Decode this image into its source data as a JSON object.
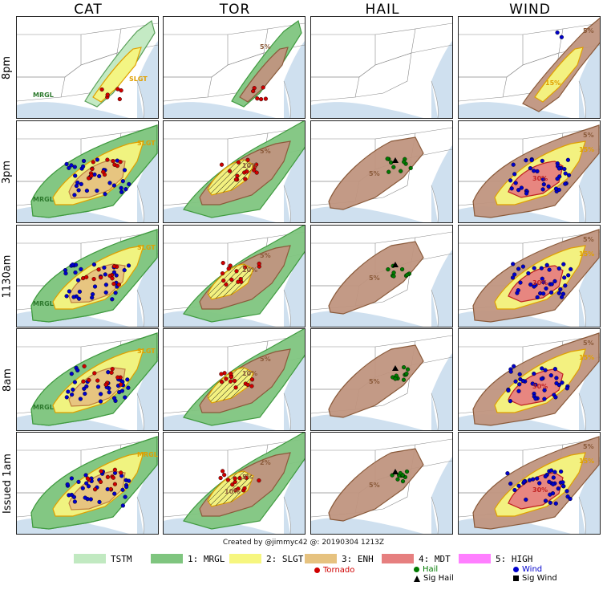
{
  "columns": [
    "CAT",
    "TOR",
    "HAIL",
    "WIND"
  ],
  "rows": [
    "8pm",
    "3pm",
    "1130am",
    "8am",
    "Issued 1am"
  ],
  "panel_labels": {
    "cat": {
      "r0": [
        "SLGT",
        "MRGL"
      ],
      "r1": [
        "SLGT",
        "MRGL"
      ],
      "r2": [
        "SLGT",
        "MRGL"
      ],
      "r3": [
        "SLGT",
        "MRGL"
      ],
      "r4": [
        "MRGL"
      ]
    },
    "tor": {
      "r0": [
        "5%"
      ],
      "r1": [
        "5%",
        "10%"
      ],
      "r2": [
        "5%",
        "10%"
      ],
      "r3": [
        "5%",
        "10%"
      ],
      "r4": [
        "2%",
        "5%",
        "10%"
      ]
    },
    "hail": {
      "r1": [
        "5%"
      ],
      "r2": [
        "5%"
      ],
      "r3": [
        "5%"
      ],
      "r4": [
        "5%"
      ]
    },
    "wind": {
      "r0": [
        "5%",
        "15%"
      ],
      "r1": [
        "5%",
        "15%",
        "30%"
      ],
      "r2": [
        "5%",
        "15%",
        "30%"
      ],
      "r3": [
        "5%",
        "15%",
        "30%"
      ],
      "r4": [
        "5%",
        "15%",
        "30%"
      ]
    }
  },
  "credit": "Created by @jimmyc42 @: 20190304 1213Z",
  "legend": {
    "categories": [
      {
        "label": "TSTM",
        "color": "#c1e9c1"
      },
      {
        "label": "1: MRGL",
        "color": "#7fc57f"
      },
      {
        "label": "2: SLGT",
        "color": "#f6f67f"
      },
      {
        "label": "3: ENH",
        "color": "#e6c27f"
      },
      {
        "label": "4: MDT",
        "color": "#e67f7f"
      },
      {
        "label": "5: HIGH",
        "color": "#ff7fff"
      }
    ],
    "reports": {
      "tornado": "Tornado",
      "hail": "Hail",
      "sig_hail": "Sig Hail",
      "wind": "Wind",
      "sig_wind": "Sig Wind"
    }
  },
  "colors": {
    "tstm": "#c1e9c1",
    "mrgl": "#7fc57f",
    "slgt": "#f6f67f",
    "enh": "#e6c27f",
    "mdt": "#e67f7f",
    "prob5": "#c0957f",
    "water": "#cfe0ef",
    "tornado": "#d00000",
    "hail": "#007a00",
    "wind": "#0000cc"
  }
}
